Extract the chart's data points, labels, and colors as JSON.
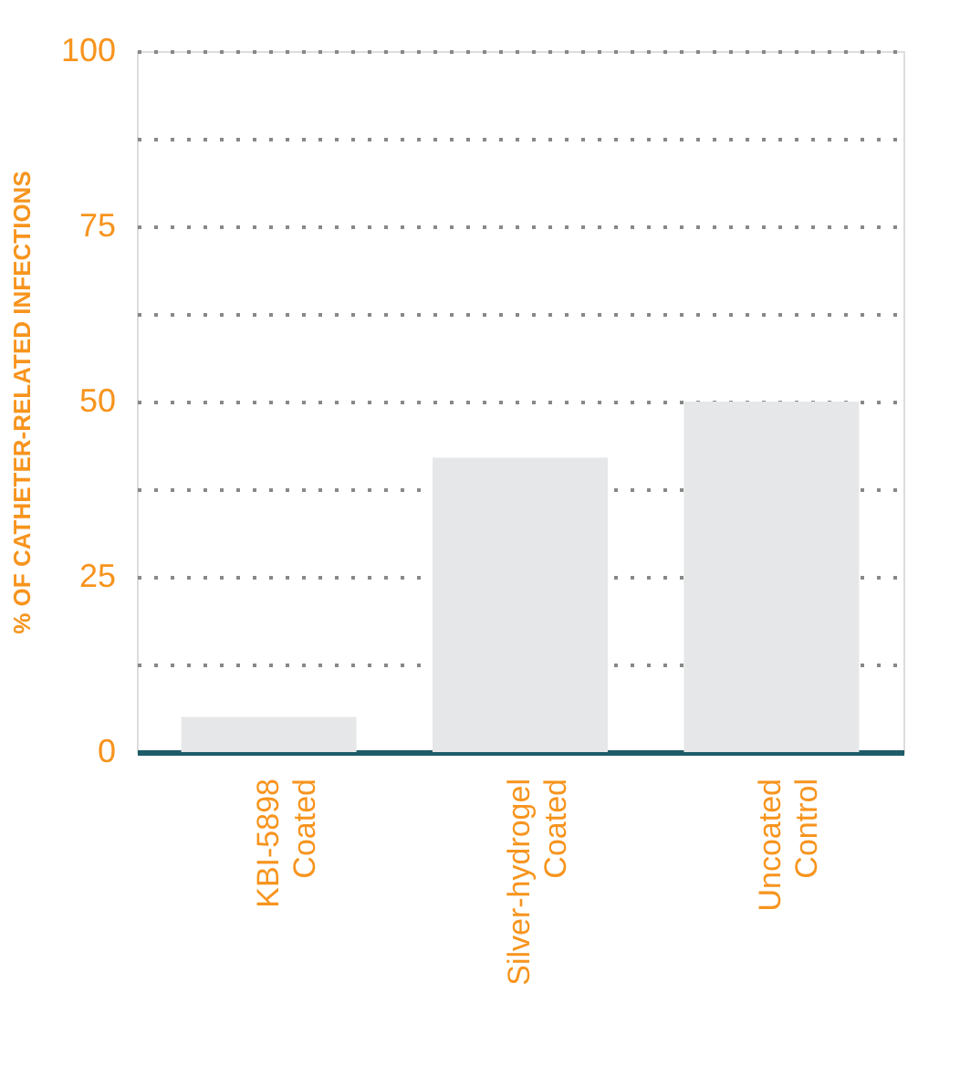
{
  "chart_data": {
    "type": "bar",
    "ylabel": "% OF CATHETER-RELATED INFECTIONS",
    "categories": [
      "KBI-5898\nCoated",
      "Silver-hydrogel\nCoated",
      "Uncoated\nControl"
    ],
    "values": [
      5,
      42,
      50
    ],
    "color": "#e6e7e8",
    "ylim": [
      0,
      100
    ],
    "yticks": [
      0,
      {
        "value": 12.5,
        "label": null
      },
      25,
      {
        "value": 37.5,
        "label": null
      },
      50,
      {
        "value": 62.5,
        "label": null
      },
      75,
      {
        "value": 87.5,
        "label": null
      },
      100
    ],
    "grid": "y"
  }
}
